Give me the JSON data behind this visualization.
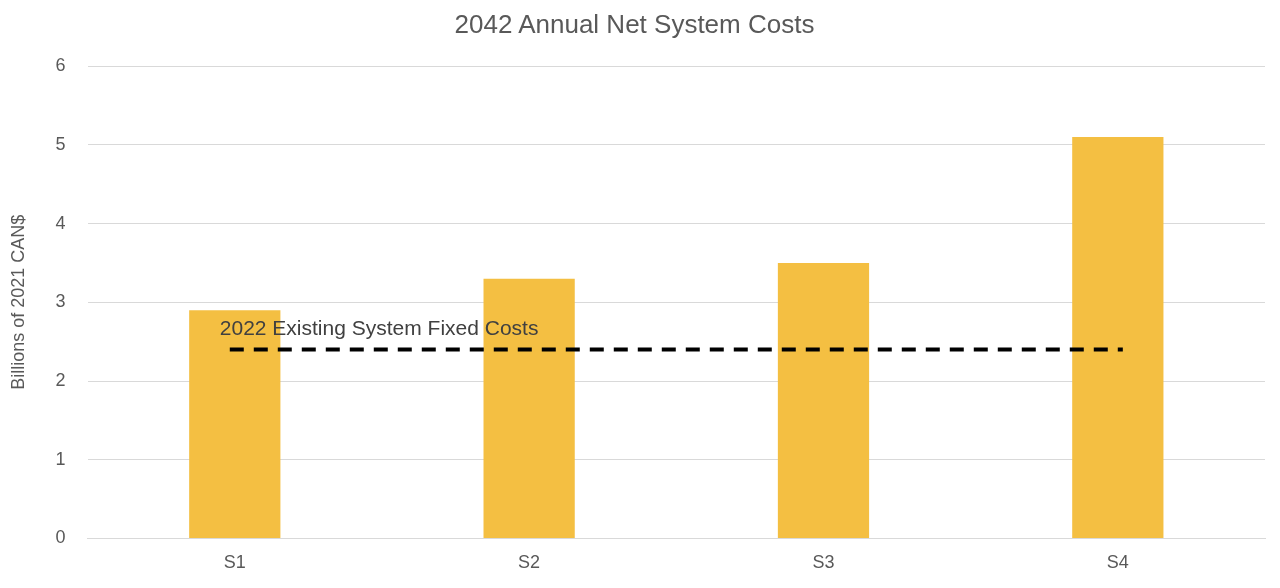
{
  "chart_data": {
    "type": "bar",
    "title": "2042 Annual Net System Costs",
    "ylabel": "Billions of 2021 CAN$",
    "categories": [
      "S1",
      "S2",
      "S3",
      "S4"
    ],
    "values": [
      2.9,
      3.3,
      3.5,
      5.1
    ],
    "color": "#f4bf42",
    "ylim": [
      0,
      6
    ],
    "yticks": [
      0,
      1,
      2,
      3,
      4,
      5,
      6
    ],
    "grid": "y",
    "ref_lines": [
      {
        "axis": "y",
        "value": 2.4,
        "label": "2022 Existing System Fixed Costs",
        "color": "#000000",
        "line_style": "dashed"
      }
    ]
  }
}
